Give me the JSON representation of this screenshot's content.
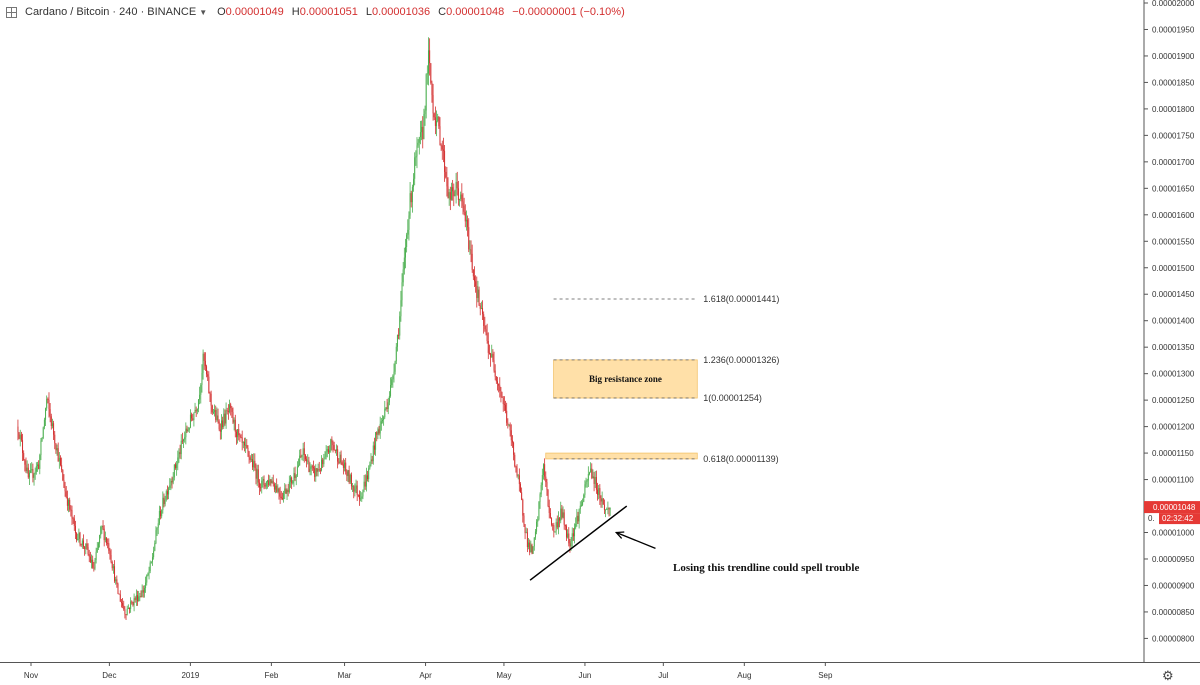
{
  "header": {
    "symbol": "Cardano / Bitcoin · 240 · BINANCE",
    "open_label": "O",
    "open": "0.00001049",
    "high_label": "H",
    "high": "0.00001051",
    "low_label": "L",
    "low": "0.00001036",
    "close_label": "C",
    "close": "0.00001048",
    "change": "−0.00000001 (−0.10%)"
  },
  "price_badge": {
    "price": "0.00001048",
    "timer": "02:32:42",
    "color": "#e53935",
    "partial": "0."
  },
  "colors": {
    "up": "#4caf50",
    "down": "#d32f2f",
    "zone_fill": "#ffe0a8",
    "zone_border": "#f3c26a"
  },
  "chart_data": {
    "type": "candlestick",
    "title": "",
    "ylim": [
      7.8e-06,
      2e-05
    ],
    "y_ticks": [
      "0.00000800",
      "0.00000850",
      "0.00000900",
      "0.00000950",
      "0.00001000",
      "0.00001050",
      "0.00001100",
      "0.00001150",
      "0.00001200",
      "0.00001250",
      "0.00001300",
      "0.00001350",
      "0.00001400",
      "0.00001450",
      "0.00001500",
      "0.00001550",
      "0.00001600",
      "0.00001650",
      "0.00001700",
      "0.00001750",
      "0.00001800",
      "0.00001850",
      "0.00001900",
      "0.00001950",
      "0.00002000"
    ],
    "x_ticks": [
      {
        "label": "Nov",
        "date": "2018-11-01"
      },
      {
        "label": "Dec",
        "date": "2018-12-01"
      },
      {
        "label": "2019",
        "date": "2019-01-01"
      },
      {
        "label": "Feb",
        "date": "2019-02-01"
      },
      {
        "label": "Mar",
        "date": "2019-03-01"
      },
      {
        "label": "Apr",
        "date": "2019-04-01"
      },
      {
        "label": "May",
        "date": "2019-05-01"
      },
      {
        "label": "Jun",
        "date": "2019-06-01"
      },
      {
        "label": "Jul",
        "date": "2019-07-01"
      },
      {
        "label": "Aug",
        "date": "2019-08-01"
      },
      {
        "label": "Sep",
        "date": "2019-09-01"
      }
    ],
    "price_path": [
      [
        "2018-10-27",
        1.2e-05
      ],
      [
        "2018-10-31",
        1.1e-05
      ],
      [
        "2018-11-04",
        1.13e-05
      ],
      [
        "2018-11-07",
        1.25e-05
      ],
      [
        "2018-11-10",
        1.18e-05
      ],
      [
        "2018-11-14",
        1.08e-05
      ],
      [
        "2018-11-18",
        1e-05
      ],
      [
        "2018-11-22",
        9.7e-06
      ],
      [
        "2018-11-25",
        9.3e-06
      ],
      [
        "2018-11-28",
        1.01e-05
      ],
      [
        "2018-12-01",
        9.7e-06
      ],
      [
        "2018-12-04",
        8.9e-06
      ],
      [
        "2018-12-07",
        8.5e-06
      ],
      [
        "2018-12-10",
        8.7e-06
      ],
      [
        "2018-12-14",
        8.9e-06
      ],
      [
        "2018-12-17",
        9.4e-06
      ],
      [
        "2018-12-20",
        1.03e-05
      ],
      [
        "2018-12-23",
        1.08e-05
      ],
      [
        "2018-12-26",
        1.12e-05
      ],
      [
        "2018-12-29",
        1.17e-05
      ],
      [
        "2019-01-01",
        1.21e-05
      ],
      [
        "2019-01-04",
        1.25e-05
      ],
      [
        "2019-01-06",
        1.33e-05
      ],
      [
        "2019-01-09",
        1.24e-05
      ],
      [
        "2019-01-12",
        1.2e-05
      ],
      [
        "2019-01-16",
        1.23e-05
      ],
      [
        "2019-01-20",
        1.17e-05
      ],
      [
        "2019-01-24",
        1.14e-05
      ],
      [
        "2019-01-28",
        1.09e-05
      ],
      [
        "2019-02-01",
        1.1e-05
      ],
      [
        "2019-02-05",
        1.07e-05
      ],
      [
        "2019-02-09",
        1.1e-05
      ],
      [
        "2019-02-13",
        1.15e-05
      ],
      [
        "2019-02-17",
        1.11e-05
      ],
      [
        "2019-02-21",
        1.13e-05
      ],
      [
        "2019-02-24",
        1.17e-05
      ],
      [
        "2019-02-28",
        1.13e-05
      ],
      [
        "2019-03-04",
        1.09e-05
      ],
      [
        "2019-03-07",
        1.07e-05
      ],
      [
        "2019-03-10",
        1.11e-05
      ],
      [
        "2019-03-13",
        1.18e-05
      ],
      [
        "2019-03-16",
        1.22e-05
      ],
      [
        "2019-03-19",
        1.28e-05
      ],
      [
        "2019-03-22",
        1.4e-05
      ],
      [
        "2019-03-25",
        1.58e-05
      ],
      [
        "2019-03-28",
        1.7e-05
      ],
      [
        "2019-03-31",
        1.76e-05
      ],
      [
        "2019-04-02",
        1.9e-05
      ],
      [
        "2019-04-04",
        1.8e-05
      ],
      [
        "2019-04-07",
        1.74e-05
      ],
      [
        "2019-04-10",
        1.63e-05
      ],
      [
        "2019-04-13",
        1.65e-05
      ],
      [
        "2019-04-16",
        1.6e-05
      ],
      [
        "2019-04-19",
        1.5e-05
      ],
      [
        "2019-04-22",
        1.42e-05
      ],
      [
        "2019-04-25",
        1.35e-05
      ],
      [
        "2019-04-28",
        1.3e-05
      ],
      [
        "2019-05-01",
        1.24e-05
      ],
      [
        "2019-05-04",
        1.17e-05
      ],
      [
        "2019-05-07",
        1.08e-05
      ],
      [
        "2019-05-10",
        9.8e-06
      ],
      [
        "2019-05-12",
        9.6e-06
      ],
      [
        "2019-05-14",
        1.03e-05
      ],
      [
        "2019-05-16",
        1.13e-05
      ],
      [
        "2019-05-18",
        1.05e-05
      ],
      [
        "2019-05-20",
        1e-05
      ],
      [
        "2019-05-23",
        1.04e-05
      ],
      [
        "2019-05-26",
        9.8e-06
      ],
      [
        "2019-05-28",
        1.01e-05
      ],
      [
        "2019-05-31",
        1.06e-05
      ],
      [
        "2019-06-03",
        1.12e-05
      ],
      [
        "2019-06-06",
        1.08e-05
      ],
      [
        "2019-06-09",
        1.04e-05
      ],
      [
        "2019-06-11",
        1.048e-05
      ]
    ],
    "fib_levels": [
      {
        "level": "1.618",
        "price": 1.441e-05,
        "label": "1.618(0.00001441)"
      },
      {
        "level": "1.236",
        "price": 1.326e-05,
        "label": "1.236(0.00001326)"
      },
      {
        "level": "1",
        "price": 1.254e-05,
        "label": "1(0.00001254)"
      },
      {
        "level": "0.618",
        "price": 1.139e-05,
        "label": "0.618(0.00001139)"
      }
    ],
    "zones": [
      {
        "label": "Big resistance zone",
        "from": 1.254e-05,
        "to": 1.326e-05
      },
      {
        "label": "",
        "from": 1.139e-05,
        "to": 1.15e-05
      }
    ],
    "trendline": {
      "from": [
        "2019-05-11",
        9.1e-06
      ],
      "to": [
        "2019-06-17",
        1.05e-05
      ]
    },
    "annotation": {
      "text": "Losing this trendline could spell trouble",
      "points_to": [
        "2019-06-13",
        1e-05
      ]
    }
  }
}
